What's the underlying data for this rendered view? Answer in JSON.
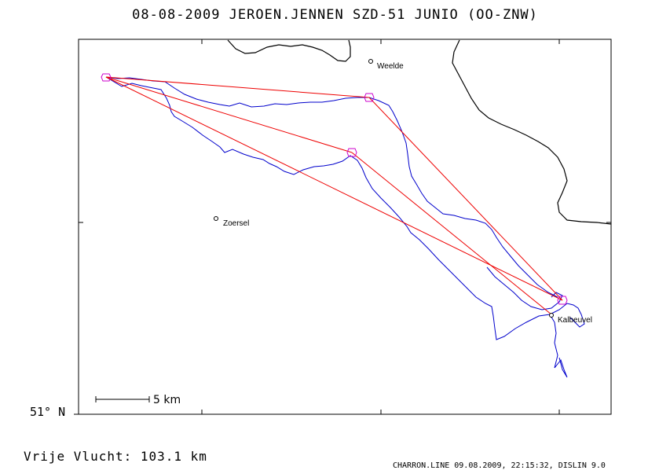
{
  "header": {
    "title": "08-08-2009    JEROEN.JENNEN    SZD-51 JUNIO (OO-ZNW)"
  },
  "map": {
    "latitude_label": "51° N",
    "scale_label": "5 km",
    "places": [
      {
        "name": "Weelde"
      },
      {
        "name": "Zoersel"
      },
      {
        "name": "Kalbeuvel"
      }
    ],
    "colors": {
      "flight_track": "#0000cc",
      "task_legs": "#ee0000",
      "turnpoints": "#cc00cc",
      "borders": "#000000",
      "frame": "#000000"
    }
  },
  "summary": {
    "distance": "Vrije Vlucht:  103.1 km"
  },
  "footer": {
    "credit": "CHARRON.LINE 09.08.2009, 22:15:32, DISLIN 9.0"
  }
}
